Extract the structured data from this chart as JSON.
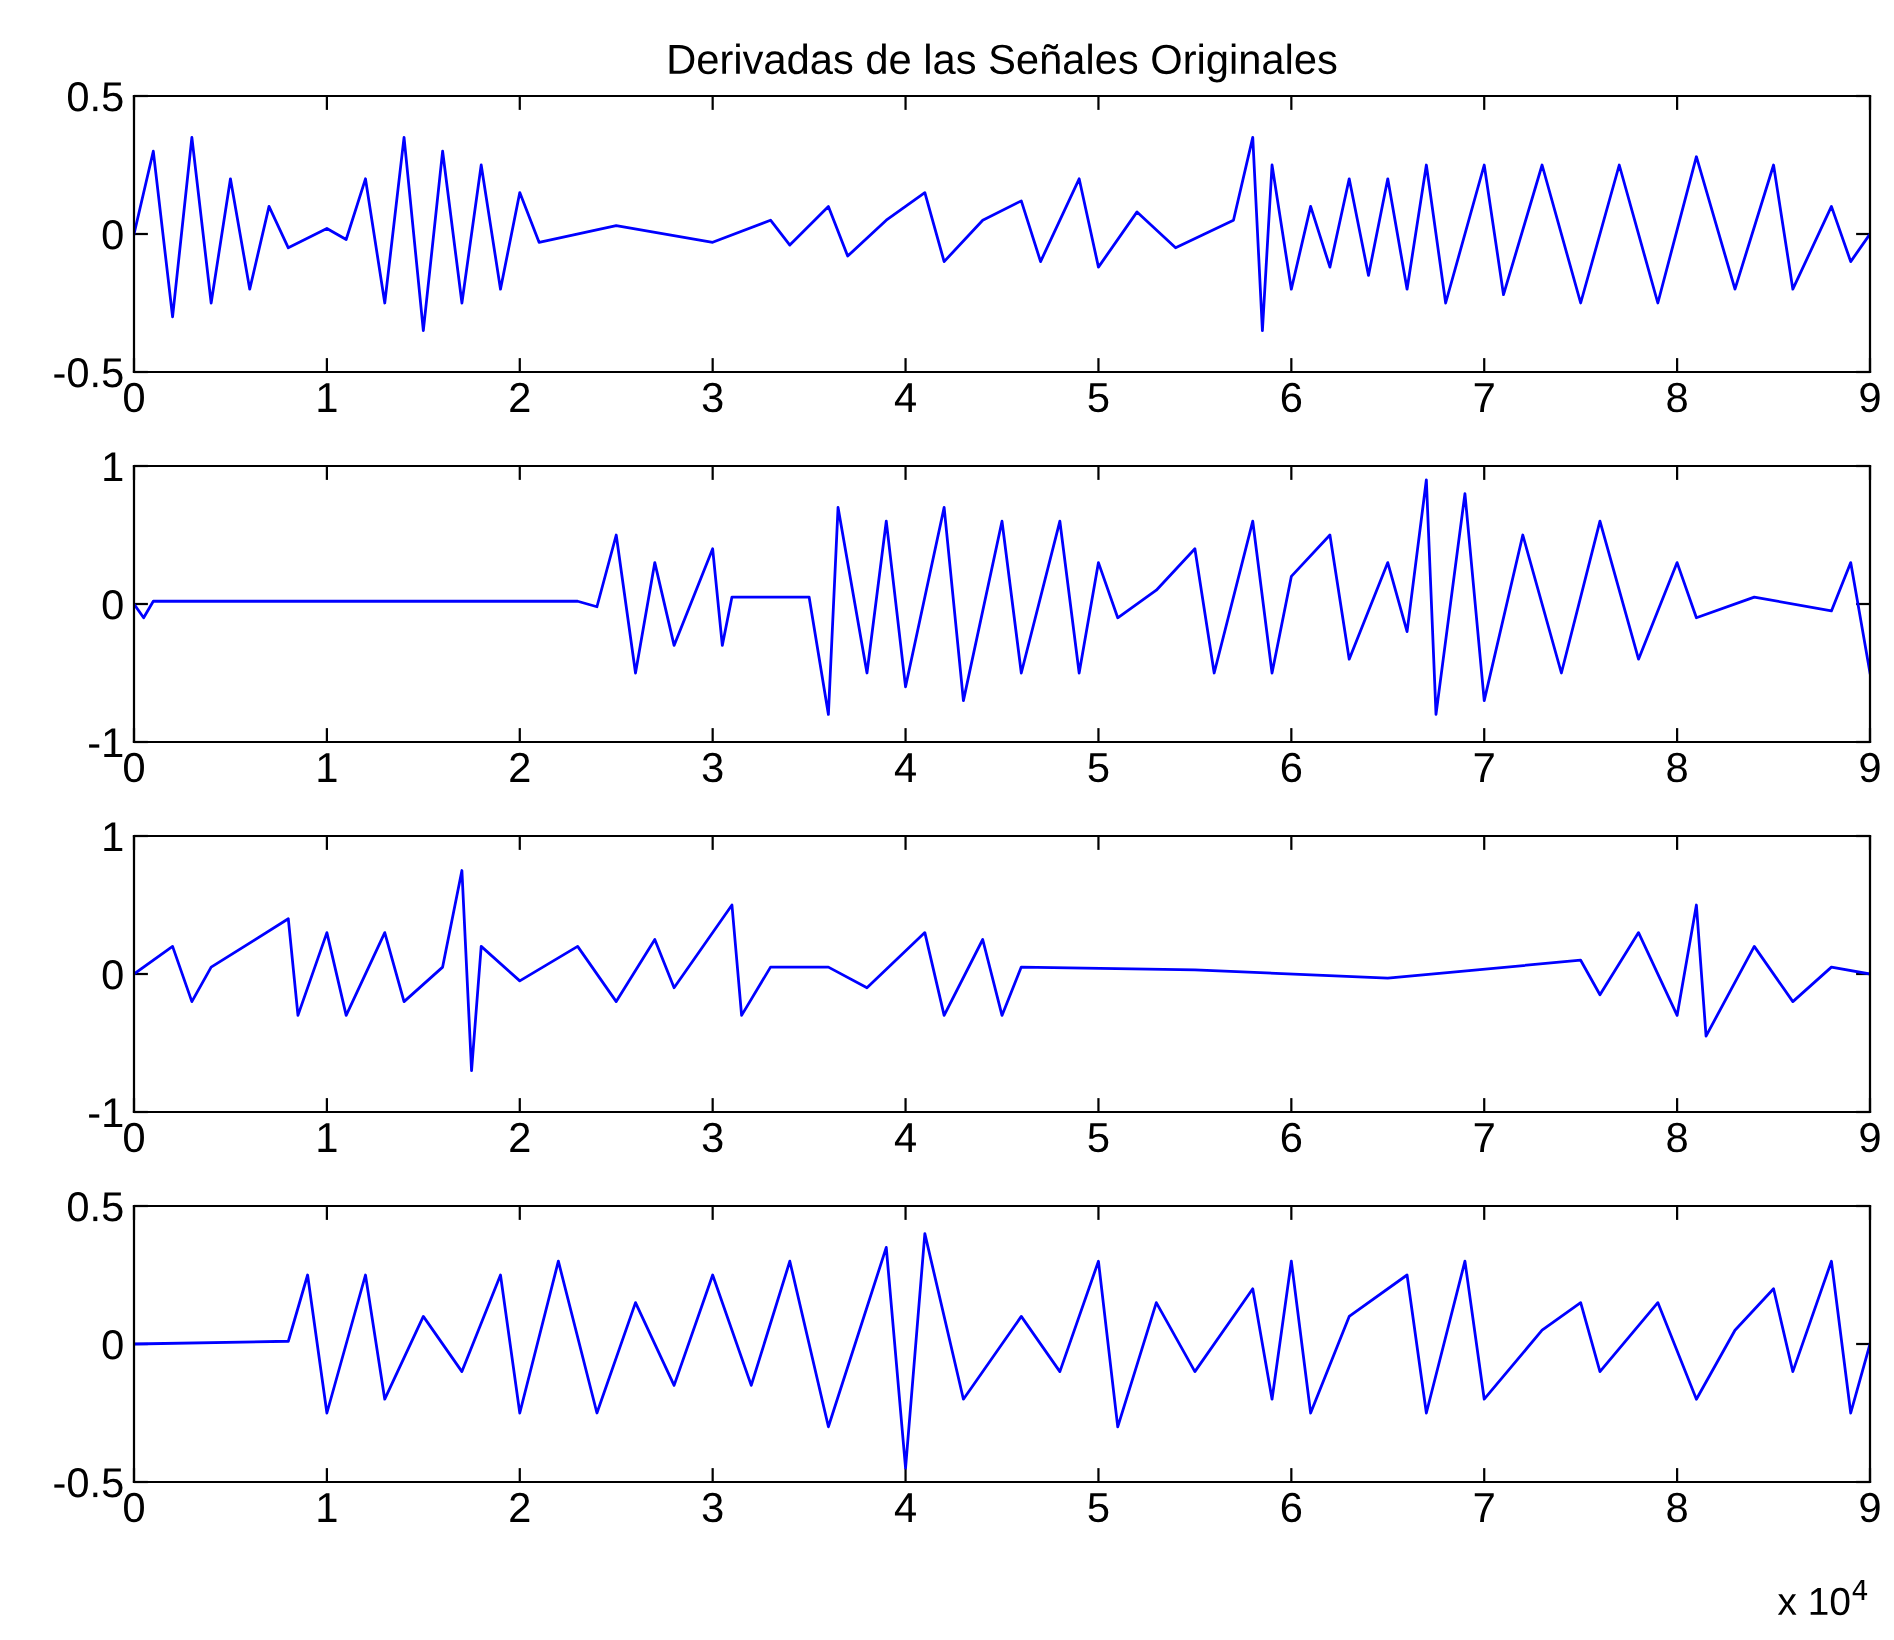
{
  "chart_data": [
    {
      "type": "line",
      "title": "Derivadas de las Señales Originales",
      "xlim": [
        0,
        9
      ],
      "ylim": [
        -0.5,
        0.5
      ],
      "yticks": [
        -0.5,
        0,
        0.5
      ],
      "xticks": [
        0,
        1,
        2,
        3,
        4,
        5,
        6,
        7,
        8,
        9
      ],
      "grid": false,
      "legend": false,
      "series": [
        {
          "color": "#0000ff",
          "x": [
            0,
            0.1,
            0.2,
            0.3,
            0.4,
            0.5,
            0.6,
            0.7,
            0.8,
            1.0,
            1.1,
            1.2,
            1.3,
            1.4,
            1.5,
            1.6,
            1.7,
            1.8,
            1.9,
            2.0,
            2.1,
            2.5,
            3.0,
            3.3,
            3.4,
            3.6,
            3.7,
            3.9,
            4.1,
            4.2,
            4.4,
            4.6,
            4.7,
            4.9,
            5.0,
            5.2,
            5.4,
            5.7,
            5.8,
            5.85,
            5.9,
            6.0,
            6.1,
            6.2,
            6.3,
            6.4,
            6.5,
            6.6,
            6.7,
            6.8,
            7.0,
            7.1,
            7.3,
            7.5,
            7.7,
            7.9,
            8.1,
            8.3,
            8.5,
            8.6,
            8.8,
            8.9,
            9.0
          ],
          "values": [
            0,
            0.3,
            -0.3,
            0.35,
            -0.25,
            0.2,
            -0.2,
            0.1,
            -0.05,
            0.02,
            -0.02,
            0.2,
            -0.25,
            0.35,
            -0.35,
            0.3,
            -0.25,
            0.25,
            -0.2,
            0.15,
            -0.03,
            0.03,
            -0.03,
            0.05,
            -0.04,
            0.1,
            -0.08,
            0.05,
            0.15,
            -0.1,
            0.05,
            0.12,
            -0.1,
            0.2,
            -0.12,
            0.08,
            -0.05,
            0.05,
            0.35,
            -0.35,
            0.25,
            -0.2,
            0.1,
            -0.12,
            0.2,
            -0.15,
            0.2,
            -0.2,
            0.25,
            -0.25,
            0.25,
            -0.22,
            0.25,
            -0.25,
            0.25,
            -0.25,
            0.28,
            -0.2,
            0.25,
            -0.2,
            0.1,
            -0.1,
            0
          ]
        }
      ]
    },
    {
      "type": "line",
      "xlim": [
        0,
        9
      ],
      "ylim": [
        -1,
        1
      ],
      "yticks": [
        -1,
        0,
        1
      ],
      "xticks": [
        0,
        1,
        2,
        3,
        4,
        5,
        6,
        7,
        8,
        9
      ],
      "grid": false,
      "legend": false,
      "series": [
        {
          "color": "#0000ff",
          "x": [
            0,
            0.05,
            0.1,
            2.3,
            2.4,
            2.5,
            2.6,
            2.7,
            2.8,
            3.0,
            3.05,
            3.1,
            3.5,
            3.6,
            3.65,
            3.8,
            3.9,
            4.0,
            4.2,
            4.3,
            4.5,
            4.6,
            4.8,
            4.9,
            5.0,
            5.1,
            5.3,
            5.5,
            5.6,
            5.8,
            5.9,
            6.0,
            6.2,
            6.3,
            6.5,
            6.6,
            6.7,
            6.75,
            6.9,
            7.0,
            7.2,
            7.4,
            7.6,
            7.8,
            8.0,
            8.1,
            8.4,
            8.8,
            8.9,
            9.0
          ],
          "values": [
            0,
            -0.1,
            0.02,
            0.02,
            -0.02,
            0.5,
            -0.5,
            0.3,
            -0.3,
            0.4,
            -0.3,
            0.05,
            0.05,
            -0.8,
            0.7,
            -0.5,
            0.6,
            -0.6,
            0.7,
            -0.7,
            0.6,
            -0.5,
            0.6,
            -0.5,
            0.3,
            -0.1,
            0.1,
            0.4,
            -0.5,
            0.6,
            -0.5,
            0.2,
            0.5,
            -0.4,
            0.3,
            -0.2,
            0.9,
            -0.8,
            0.8,
            -0.7,
            0.5,
            -0.5,
            0.6,
            -0.4,
            0.3,
            -0.1,
            0.05,
            -0.05,
            0.3,
            -0.5
          ]
        }
      ]
    },
    {
      "type": "line",
      "xlim": [
        0,
        9
      ],
      "ylim": [
        -1,
        1
      ],
      "yticks": [
        -1,
        0,
        1
      ],
      "xticks": [
        0,
        1,
        2,
        3,
        4,
        5,
        6,
        7,
        8,
        9
      ],
      "grid": false,
      "legend": false,
      "series": [
        {
          "color": "#0000ff",
          "x": [
            0,
            0.2,
            0.3,
            0.4,
            0.8,
            0.85,
            1.0,
            1.1,
            1.3,
            1.4,
            1.6,
            1.7,
            1.75,
            1.8,
            2.0,
            2.3,
            2.5,
            2.7,
            2.8,
            3.1,
            3.15,
            3.3,
            3.6,
            3.8,
            4.1,
            4.2,
            4.4,
            4.5,
            4.6,
            5.5,
            6.5,
            7.5,
            7.6,
            7.8,
            8.0,
            8.1,
            8.15,
            8.4,
            8.6,
            8.8,
            9.0
          ],
          "values": [
            0,
            0.2,
            -0.2,
            0.05,
            0.4,
            -0.3,
            0.3,
            -0.3,
            0.3,
            -0.2,
            0.05,
            0.75,
            -0.7,
            0.2,
            -0.05,
            0.2,
            -0.2,
            0.25,
            -0.1,
            0.5,
            -0.3,
            0.05,
            0.05,
            -0.1,
            0.3,
            -0.3,
            0.25,
            -0.3,
            0.05,
            0.03,
            -0.03,
            0.1,
            -0.15,
            0.3,
            -0.3,
            0.5,
            -0.45,
            0.2,
            -0.2,
            0.05,
            0
          ]
        }
      ]
    },
    {
      "type": "line",
      "xlim": [
        0,
        9
      ],
      "ylim": [
        -0.5,
        0.5
      ],
      "yticks": [
        -0.5,
        0,
        0.5
      ],
      "xticks": [
        0,
        1,
        2,
        3,
        4,
        5,
        6,
        7,
        8,
        9
      ],
      "grid": false,
      "legend": false,
      "annotations": [
        "x 10$^{4}$"
      ],
      "series": [
        {
          "color": "#0000ff",
          "x": [
            0,
            0.8,
            0.9,
            1.0,
            1.2,
            1.3,
            1.5,
            1.7,
            1.9,
            2.0,
            2.2,
            2.4,
            2.6,
            2.8,
            3.0,
            3.2,
            3.4,
            3.6,
            3.9,
            4.0,
            4.1,
            4.3,
            4.6,
            4.8,
            5.0,
            5.1,
            5.3,
            5.5,
            5.8,
            5.9,
            6.0,
            6.1,
            6.3,
            6.6,
            6.7,
            6.9,
            7.0,
            7.3,
            7.5,
            7.6,
            7.9,
            8.1,
            8.3,
            8.5,
            8.6,
            8.8,
            8.9,
            9.0
          ],
          "values": [
            0,
            0.01,
            0.25,
            -0.25,
            0.25,
            -0.2,
            0.1,
            -0.1,
            0.25,
            -0.25,
            0.3,
            -0.25,
            0.15,
            -0.15,
            0.25,
            -0.15,
            0.3,
            -0.3,
            0.35,
            -0.45,
            0.4,
            -0.2,
            0.1,
            -0.1,
            0.3,
            -0.3,
            0.15,
            -0.1,
            0.2,
            -0.2,
            0.3,
            -0.25,
            0.1,
            0.25,
            -0.25,
            0.3,
            -0.2,
            0.05,
            0.15,
            -0.1,
            0.15,
            -0.2,
            0.05,
            0.2,
            -0.1,
            0.3,
            -0.25,
            0
          ]
        }
      ]
    }
  ]
}
